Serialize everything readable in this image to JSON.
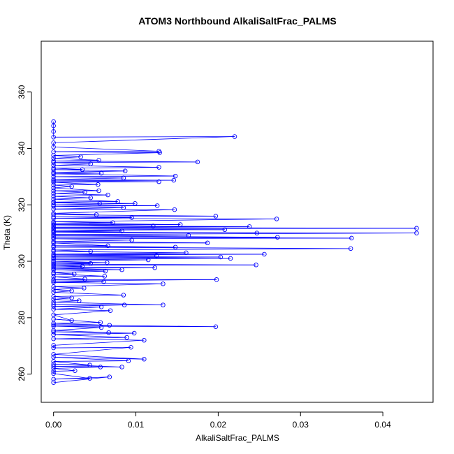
{
  "chart_data": {
    "type": "line",
    "title": "ATOM3 Northbound AlkaliSaltFrac_PALMS",
    "xlabel": "AlkaliSaltFrac_PALMS",
    "ylabel": "Theta (K)",
    "xlim": [
      -0.0015,
      0.0461
    ],
    "ylim": [
      250,
      378
    ],
    "x_ticks": [
      0.0,
      0.01,
      0.02,
      0.03,
      0.04
    ],
    "x_tick_labels": [
      "0.00",
      "0.01",
      "0.02",
      "0.03",
      "0.04"
    ],
    "y_ticks": [
      260,
      280,
      300,
      320,
      340,
      360
    ],
    "y_tick_labels": [
      "260",
      "280",
      "300",
      "320",
      "340",
      "360"
    ],
    "grid": false,
    "series_color": "#0000ff",
    "marker": "open-circle",
    "series": [
      {
        "points": [
          [
            0.0,
            257.0
          ],
          [
            0.0068,
            259.0
          ],
          [
            0.0,
            258.2
          ],
          [
            0.0044,
            258.5
          ],
          [
            0.0,
            260.2
          ],
          [
            0.0,
            261.0
          ],
          [
            0.0026,
            261.2
          ],
          [
            0.0,
            262.0
          ],
          [
            0.0057,
            262.5
          ],
          [
            0.0,
            262.8
          ],
          [
            0.0083,
            262.5
          ],
          [
            0.0,
            263.5
          ],
          [
            0.0044,
            263.2
          ],
          [
            0.0,
            264.5
          ],
          [
            0.0091,
            264.7
          ],
          [
            0.0,
            266.0
          ],
          [
            0.011,
            265.3
          ],
          [
            0.0,
            267.0
          ],
          [
            0.0094,
            269.5
          ],
          [
            0.0,
            269.3
          ],
          [
            0.0,
            270.2
          ],
          [
            0.011,
            272.0
          ],
          [
            0.0,
            272.5
          ],
          [
            0.0089,
            273.0
          ],
          [
            0.0,
            274.0
          ],
          [
            0.0098,
            274.5
          ],
          [
            0.0,
            275.0
          ],
          [
            0.0067,
            274.7
          ],
          [
            0.0,
            275.5
          ],
          [
            0.0058,
            276.5
          ],
          [
            0.0,
            277.0
          ],
          [
            0.0197,
            276.8
          ],
          [
            0.0,
            277.5
          ],
          [
            0.0068,
            277.3
          ],
          [
            0.0,
            278.0
          ],
          [
            0.0057,
            278.3
          ],
          [
            0.0,
            279.5
          ],
          [
            0.0022,
            279.0
          ],
          [
            0.0,
            281.0
          ],
          [
            0.0069,
            282.5
          ],
          [
            0.0,
            283.0
          ],
          [
            0.0058,
            283.8
          ],
          [
            0.0,
            284.0
          ],
          [
            0.0086,
            284.5
          ],
          [
            0.0,
            284.7
          ],
          [
            0.0133,
            284.5
          ],
          [
            0.0,
            285.5
          ],
          [
            0.0031,
            286.0
          ],
          [
            0.0,
            286.5
          ],
          [
            0.0022,
            287.0
          ],
          [
            0.0,
            287.5
          ],
          [
            0.0085,
            288.0
          ],
          [
            0.0,
            289.0
          ],
          [
            0.0022,
            289.5
          ],
          [
            0.0,
            290.0
          ],
          [
            0.0037,
            290.5
          ],
          [
            0.0,
            291.0
          ],
          [
            0.0133,
            292.0
          ],
          [
            0.0,
            292.5
          ],
          [
            0.0061,
            292.7
          ],
          [
            0.0,
            293.0
          ],
          [
            0.0198,
            293.5
          ],
          [
            0.0,
            293.5
          ],
          [
            0.0038,
            293.7
          ],
          [
            0.0,
            294.5
          ],
          [
            0.0062,
            294.7
          ],
          [
            0.0,
            295.5
          ],
          [
            0.0025,
            295.5
          ],
          [
            0.0,
            296.0
          ],
          [
            0.0063,
            296.5
          ],
          [
            0.0,
            297.0
          ],
          [
            0.0083,
            297.0
          ],
          [
            0.0,
            297.5
          ],
          [
            0.0123,
            297.7
          ],
          [
            0.0,
            298.0
          ],
          [
            0.0035,
            298.2
          ],
          [
            0.0,
            298.5
          ],
          [
            0.0246,
            298.7
          ],
          [
            0.0,
            299.0
          ],
          [
            0.0045,
            299.2
          ],
          [
            0.0,
            299.5
          ],
          [
            0.0065,
            299.5
          ],
          [
            0.0,
            300.0
          ],
          [
            0.0115,
            300.5
          ],
          [
            0.0,
            300.7
          ],
          [
            0.0215,
            301.0
          ],
          [
            0.0,
            301.2
          ],
          [
            0.0203,
            301.5
          ],
          [
            0.0,
            301.7
          ],
          [
            0.0125,
            302.0
          ],
          [
            0.0,
            302.2
          ],
          [
            0.0256,
            302.5
          ],
          [
            0.0,
            302.5
          ],
          [
            0.0161,
            303.0
          ],
          [
            0.0,
            303.5
          ],
          [
            0.0045,
            303.5
          ],
          [
            0.0,
            304.0
          ],
          [
            0.0361,
            304.5
          ],
          [
            0.0,
            305.0
          ],
          [
            0.0148,
            305.0
          ],
          [
            0.0,
            305.5
          ],
          [
            0.0066,
            305.5
          ],
          [
            0.0,
            306.5
          ],
          [
            0.0187,
            306.5
          ],
          [
            0.0,
            307.0
          ],
          [
            0.0095,
            307.5
          ],
          [
            0.0,
            308.0
          ],
          [
            0.0362,
            308.2
          ],
          [
            0.0,
            308.5
          ],
          [
            0.0272,
            308.5
          ],
          [
            0.0,
            309.0
          ],
          [
            0.0164,
            309.2
          ],
          [
            0.0,
            309.5
          ],
          [
            0.0441,
            310.0
          ],
          [
            0.0,
            310.2
          ],
          [
            0.0247,
            310.0
          ],
          [
            0.0,
            310.5
          ],
          [
            0.0083,
            310.7
          ],
          [
            0.0,
            311.0
          ],
          [
            0.0208,
            311.2
          ],
          [
            0.0,
            311.5
          ],
          [
            0.0441,
            311.7
          ],
          [
            0.0,
            312.0
          ],
          [
            0.0238,
            312.3
          ],
          [
            0.0,
            312.5
          ],
          [
            0.0121,
            312.5
          ],
          [
            0.0,
            313.0
          ],
          [
            0.0154,
            313.0
          ],
          [
            0.0,
            313.5
          ],
          [
            0.0072,
            313.7
          ],
          [
            0.0,
            314.0
          ],
          [
            0.0271,
            315.0
          ],
          [
            0.0,
            315.2
          ],
          [
            0.0095,
            315.5
          ],
          [
            0.0,
            315.7
          ],
          [
            0.0197,
            316.0
          ],
          [
            0.0,
            316.5
          ],
          [
            0.0052,
            316.5
          ],
          [
            0.0,
            317.0
          ],
          [
            0.0147,
            318.3
          ],
          [
            0.0,
            318.5
          ],
          [
            0.0085,
            319.0
          ],
          [
            0.0,
            319.5
          ],
          [
            0.0126,
            319.7
          ],
          [
            0.0,
            320.0
          ],
          [
            0.0099,
            320.5
          ],
          [
            0.0,
            320.7
          ],
          [
            0.0056,
            320.5
          ],
          [
            0.0,
            321.0
          ],
          [
            0.0078,
            321.2
          ],
          [
            0.0,
            322.0
          ],
          [
            0.0045,
            322.5
          ],
          [
            0.0,
            323.0
          ],
          [
            0.0066,
            323.5
          ],
          [
            0.0,
            324.0
          ],
          [
            0.0038,
            324.5
          ],
          [
            0.0,
            325.0
          ],
          [
            0.0055,
            325.0
          ],
          [
            0.0,
            326.0
          ],
          [
            0.0022,
            326.5
          ],
          [
            0.0,
            327.0
          ],
          [
            0.0054,
            327.2
          ],
          [
            0.0,
            328.0
          ],
          [
            0.0128,
            328.2
          ],
          [
            0.0,
            328.5
          ],
          [
            0.0146,
            328.7
          ],
          [
            0.0,
            329.0
          ],
          [
            0.0085,
            329.5
          ],
          [
            0.0,
            330.0
          ],
          [
            0.0148,
            330.2
          ],
          [
            0.0,
            331.0
          ],
          [
            0.0058,
            331.2
          ],
          [
            0.0,
            331.5
          ],
          [
            0.0087,
            332.0
          ],
          [
            0.0,
            332.5
          ],
          [
            0.0035,
            332.5
          ],
          [
            0.0,
            333.0
          ],
          [
            0.0128,
            333.3
          ],
          [
            0.0,
            334.0
          ],
          [
            0.0045,
            334.5
          ],
          [
            0.0,
            335.0
          ],
          [
            0.0175,
            335.2
          ],
          [
            0.0,
            335.5
          ],
          [
            0.0055,
            335.8
          ],
          [
            0.0,
            336.5
          ],
          [
            0.0033,
            337.0
          ],
          [
            0.0,
            337.5
          ],
          [
            0.0129,
            338.5
          ],
          [
            0.0,
            338.8
          ],
          [
            0.0128,
            339.0
          ],
          [
            0.0,
            340.5
          ],
          [
            0.0,
            342.0
          ],
          [
            0.022,
            344.2
          ],
          [
            0.0,
            344.0
          ],
          [
            0.0,
            346.0
          ],
          [
            0.0,
            348.0
          ],
          [
            0.0,
            349.5
          ]
        ]
      }
    ]
  }
}
